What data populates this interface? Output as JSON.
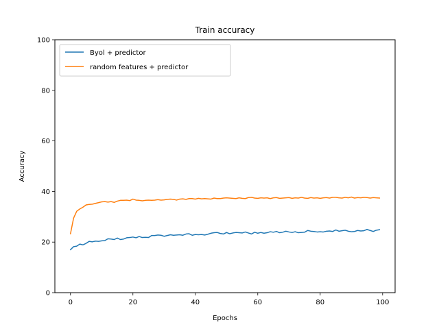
{
  "chart_data": {
    "type": "line",
    "title": "Train accuracy",
    "xlabel": "Epochs",
    "ylabel": "Accuracy",
    "xlim": [
      -5,
      104
    ],
    "ylim": [
      0,
      100
    ],
    "xticks": [
      0,
      20,
      40,
      60,
      80,
      100
    ],
    "yticks": [
      0,
      20,
      40,
      60,
      80,
      100
    ],
    "grid": false,
    "legend_position": "top-left",
    "series": [
      {
        "name": "Byol + predictor",
        "color": "#1f77b4",
        "x": [
          0,
          1,
          2,
          3,
          4,
          5,
          6,
          7,
          8,
          9,
          10,
          11,
          12,
          13,
          14,
          15,
          16,
          17,
          18,
          19,
          20,
          21,
          22,
          23,
          24,
          25,
          26,
          27,
          28,
          29,
          30,
          31,
          32,
          33,
          34,
          35,
          36,
          37,
          38,
          39,
          40,
          41,
          42,
          43,
          44,
          45,
          46,
          47,
          48,
          49,
          50,
          51,
          52,
          53,
          54,
          55,
          56,
          57,
          58,
          59,
          60,
          61,
          62,
          63,
          64,
          65,
          66,
          67,
          68,
          69,
          70,
          71,
          72,
          73,
          74,
          75,
          76,
          77,
          78,
          79,
          80,
          81,
          82,
          83,
          84,
          85,
          86,
          87,
          88,
          89,
          90,
          91,
          92,
          93,
          94,
          95,
          96,
          97,
          98,
          99
        ],
        "values": [
          17.0,
          18.2,
          18.4,
          19.2,
          18.9,
          19.5,
          20.3,
          20.1,
          20.4,
          20.3,
          20.5,
          20.6,
          21.3,
          21.2,
          21.0,
          21.6,
          21.0,
          21.2,
          21.7,
          21.8,
          22.0,
          21.7,
          22.2,
          21.8,
          21.9,
          21.8,
          22.6,
          22.6,
          22.8,
          22.7,
          22.3,
          22.6,
          22.9,
          22.7,
          22.8,
          22.9,
          22.7,
          23.2,
          23.3,
          22.7,
          23.0,
          22.9,
          23.0,
          22.8,
          23.1,
          23.5,
          23.7,
          23.8,
          23.4,
          23.2,
          23.8,
          23.3,
          23.6,
          23.8,
          23.7,
          23.6,
          24.0,
          23.6,
          23.2,
          23.9,
          23.5,
          23.8,
          23.5,
          23.7,
          24.1,
          23.9,
          24.2,
          23.7,
          23.9,
          24.3,
          24.0,
          23.8,
          24.1,
          23.7,
          23.8,
          23.9,
          24.6,
          24.3,
          24.2,
          24.0,
          24.1,
          24.0,
          24.3,
          24.4,
          24.2,
          24.8,
          24.3,
          24.5,
          24.7,
          24.3,
          24.1,
          24.2,
          24.6,
          24.4,
          24.5,
          25.0,
          24.6,
          24.2,
          24.7,
          24.9
        ]
      },
      {
        "name": "random features + predictor",
        "color": "#ff7f0e",
        "x": [
          0,
          1,
          2,
          3,
          4,
          5,
          6,
          7,
          8,
          9,
          10,
          11,
          12,
          13,
          14,
          15,
          16,
          17,
          18,
          19,
          20,
          21,
          22,
          23,
          24,
          25,
          26,
          27,
          28,
          29,
          30,
          31,
          32,
          33,
          34,
          35,
          36,
          37,
          38,
          39,
          40,
          41,
          42,
          43,
          44,
          45,
          46,
          47,
          48,
          49,
          50,
          51,
          52,
          53,
          54,
          55,
          56,
          57,
          58,
          59,
          60,
          61,
          62,
          63,
          64,
          65,
          66,
          67,
          68,
          69,
          70,
          71,
          72,
          73,
          74,
          75,
          76,
          77,
          78,
          79,
          80,
          81,
          82,
          83,
          84,
          85,
          86,
          87,
          88,
          89,
          90,
          91,
          92,
          93,
          94,
          95,
          96,
          97,
          98,
          99
        ],
        "values": [
          23.3,
          29.5,
          32.2,
          33.1,
          33.8,
          34.7,
          34.9,
          35.0,
          35.3,
          35.6,
          35.9,
          36.0,
          35.8,
          36.0,
          35.7,
          36.2,
          36.5,
          36.5,
          36.6,
          36.4,
          37.0,
          36.6,
          36.5,
          36.3,
          36.5,
          36.6,
          36.5,
          36.6,
          36.8,
          36.6,
          36.7,
          36.9,
          37.0,
          36.9,
          36.6,
          37.0,
          37.1,
          36.9,
          37.2,
          37.2,
          37.0,
          37.3,
          37.1,
          37.2,
          37.1,
          37.0,
          37.4,
          37.2,
          37.2,
          37.4,
          37.5,
          37.4,
          37.3,
          37.2,
          37.5,
          37.3,
          37.2,
          37.6,
          37.7,
          37.4,
          37.3,
          37.5,
          37.4,
          37.5,
          37.2,
          37.5,
          37.6,
          37.3,
          37.4,
          37.5,
          37.6,
          37.3,
          37.5,
          37.4,
          37.7,
          37.4,
          37.3,
          37.6,
          37.4,
          37.5,
          37.3,
          37.5,
          37.6,
          37.4,
          37.7,
          37.7,
          37.5,
          37.4,
          37.7,
          37.5,
          37.8,
          37.4,
          37.6,
          37.5,
          37.7,
          37.6,
          37.4,
          37.6,
          37.5,
          37.4
        ]
      }
    ]
  }
}
